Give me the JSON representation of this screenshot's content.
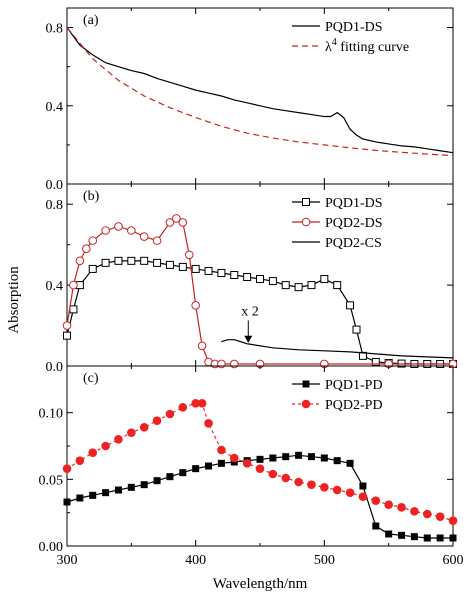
{
  "figure": {
    "ylabel": "Absorption",
    "xlabel": "Wavelength/nm"
  },
  "chart_data": [
    {
      "panel_label": "(a)",
      "type": "line",
      "xlim": [
        300,
        600
      ],
      "ylim": [
        0.0,
        0.9
      ],
      "yticks": [
        0.0,
        0.4,
        0.8
      ],
      "ytick_labels": [
        "0.0",
        "0.4",
        "0.8"
      ],
      "legend_position": "top-right",
      "series": [
        {
          "name": "PQD1-DS",
          "color": "#000000",
          "style": "solid",
          "x": [
            300,
            310,
            320,
            330,
            340,
            350,
            360,
            370,
            380,
            390,
            400,
            410,
            420,
            430,
            440,
            450,
            460,
            470,
            480,
            490,
            500,
            505,
            510,
            515,
            520,
            525,
            530,
            540,
            550,
            560,
            570,
            580,
            590,
            600
          ],
          "y": [
            0.8,
            0.71,
            0.66,
            0.62,
            0.6,
            0.58,
            0.565,
            0.54,
            0.52,
            0.5,
            0.48,
            0.465,
            0.45,
            0.43,
            0.415,
            0.4,
            0.385,
            0.375,
            0.365,
            0.355,
            0.345,
            0.345,
            0.365,
            0.34,
            0.28,
            0.25,
            0.23,
            0.215,
            0.205,
            0.195,
            0.19,
            0.18,
            0.17,
            0.16
          ]
        },
        {
          "name": "λ⁴ fitting curve",
          "color": "#cc2222",
          "style": "dashed",
          "x": [
            300,
            320,
            340,
            360,
            380,
            400,
            420,
            440,
            460,
            480,
            500,
            520,
            540,
            560,
            580,
            600
          ],
          "y": [
            0.8,
            0.64,
            0.53,
            0.45,
            0.39,
            0.34,
            0.295,
            0.26,
            0.235,
            0.215,
            0.2,
            0.185,
            0.172,
            0.162,
            0.153,
            0.145
          ]
        }
      ],
      "legend": [
        "PQD1-DS",
        "λ"
      ],
      "legend_sup": "4",
      "legend_suffix": "fitting curve"
    },
    {
      "panel_label": "(b)",
      "type": "line",
      "xlim": [
        300,
        600
      ],
      "ylim": [
        0.0,
        0.9
      ],
      "yticks": [
        0.0,
        0.4,
        0.8
      ],
      "ytick_labels": [
        "0.0",
        "0.4",
        "0.8"
      ],
      "legend_position": "top-right",
      "annotation": "x 2",
      "series": [
        {
          "name": "PQD1-DS",
          "color": "#000000",
          "marker": "open-square",
          "x": [
            300,
            305,
            310,
            320,
            330,
            340,
            350,
            360,
            370,
            380,
            390,
            400,
            410,
            420,
            430,
            440,
            450,
            460,
            470,
            480,
            490,
            500,
            510,
            520,
            525,
            530,
            540,
            550,
            560,
            570,
            580,
            590,
            600
          ],
          "y": [
            0.15,
            0.28,
            0.4,
            0.48,
            0.51,
            0.52,
            0.52,
            0.52,
            0.51,
            0.5,
            0.49,
            0.48,
            0.47,
            0.46,
            0.45,
            0.44,
            0.43,
            0.42,
            0.4,
            0.39,
            0.4,
            0.43,
            0.4,
            0.3,
            0.18,
            0.05,
            0.02,
            0.015,
            0.012,
            0.01,
            0.01,
            0.01,
            0.01
          ]
        },
        {
          "name": "PQD2-DS",
          "color": "#cc2222",
          "marker": "open-circle",
          "x": [
            300,
            305,
            310,
            315,
            320,
            330,
            340,
            350,
            360,
            370,
            380,
            385,
            390,
            395,
            400,
            405,
            410,
            415,
            420,
            430,
            450,
            500,
            550,
            600
          ],
          "y": [
            0.2,
            0.4,
            0.52,
            0.58,
            0.62,
            0.67,
            0.69,
            0.67,
            0.64,
            0.62,
            0.71,
            0.73,
            0.71,
            0.55,
            0.3,
            0.1,
            0.02,
            0.01,
            0.01,
            0.01,
            0.01,
            0.01,
            0.01,
            0.01
          ]
        },
        {
          "name": "PQD2-CS",
          "color": "#000000",
          "style": "solid",
          "x": [
            420,
            425,
            430,
            440,
            460,
            480,
            500,
            520,
            540,
            560,
            580,
            600
          ],
          "y": [
            0.12,
            0.13,
            0.13,
            0.11,
            0.09,
            0.08,
            0.075,
            0.07,
            0.06,
            0.05,
            0.045,
            0.04
          ]
        }
      ]
    },
    {
      "panel_label": "(c)",
      "type": "line",
      "xlim": [
        300,
        600
      ],
      "ylim": [
        0.0,
        0.135
      ],
      "yticks": [
        0.0,
        0.05,
        0.1
      ],
      "ytick_labels": [
        "0.00",
        "0.05",
        "0.10"
      ],
      "xticks": [
        300,
        400,
        500,
        600
      ],
      "xtick_labels": [
        "300",
        "400",
        "500",
        "600"
      ],
      "legend_position": "top-right",
      "series": [
        {
          "name": "PQD1-PD",
          "color": "#000000",
          "marker": "filled-square",
          "x": [
            300,
            310,
            320,
            330,
            340,
            350,
            360,
            370,
            380,
            390,
            400,
            410,
            420,
            430,
            440,
            450,
            460,
            470,
            480,
            490,
            500,
            510,
            520,
            530,
            540,
            550,
            560,
            570,
            580,
            590,
            600
          ],
          "y": [
            0.033,
            0.036,
            0.038,
            0.04,
            0.042,
            0.044,
            0.046,
            0.049,
            0.052,
            0.055,
            0.058,
            0.06,
            0.062,
            0.063,
            0.064,
            0.065,
            0.066,
            0.067,
            0.068,
            0.067,
            0.066,
            0.064,
            0.062,
            0.045,
            0.015,
            0.009,
            0.008,
            0.007,
            0.006,
            0.006,
            0.006
          ]
        },
        {
          "name": "PQD2-PD",
          "color": "#ee2222",
          "marker": "filled-circle",
          "x": [
            300,
            310,
            320,
            330,
            340,
            350,
            360,
            370,
            380,
            390,
            400,
            405,
            410,
            420,
            430,
            440,
            450,
            460,
            470,
            480,
            490,
            500,
            510,
            520,
            530,
            540,
            550,
            560,
            570,
            580,
            590,
            600
          ],
          "y": [
            0.058,
            0.064,
            0.07,
            0.075,
            0.08,
            0.085,
            0.089,
            0.094,
            0.099,
            0.104,
            0.107,
            0.107,
            0.092,
            0.072,
            0.066,
            0.062,
            0.058,
            0.054,
            0.051,
            0.048,
            0.046,
            0.044,
            0.042,
            0.04,
            0.037,
            0.034,
            0.031,
            0.029,
            0.026,
            0.024,
            0.022,
            0.019
          ]
        }
      ]
    }
  ]
}
